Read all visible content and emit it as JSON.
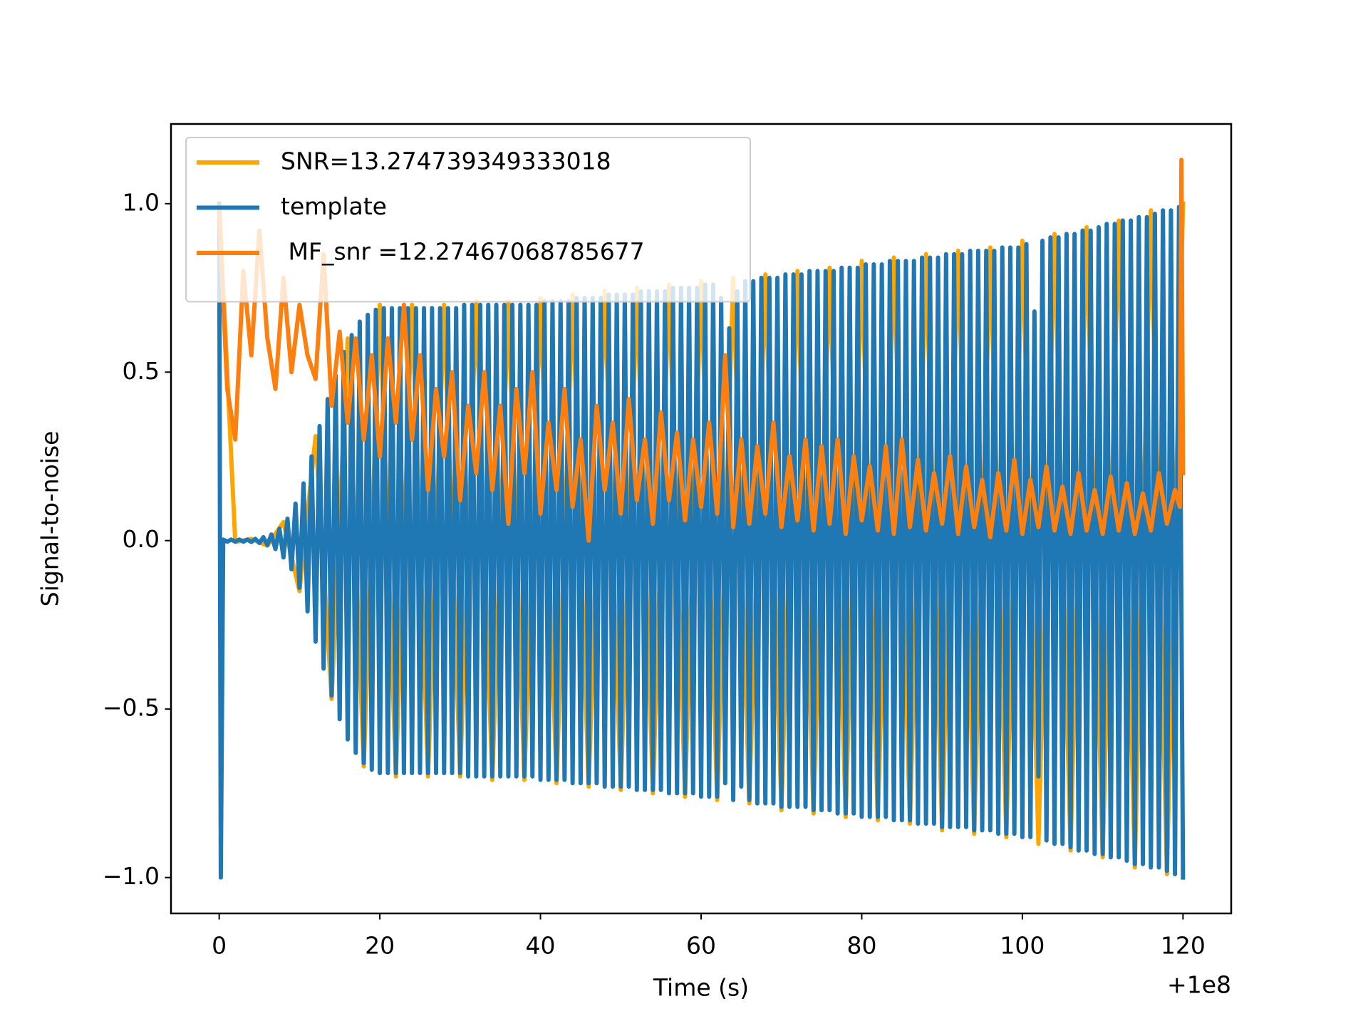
{
  "chart_data": {
    "type": "line",
    "x_label": "Time (s)",
    "y_label": "Signal-to-noise",
    "x_offset_label": "+1e8",
    "xlim": [
      -6,
      126
    ],
    "xticks": [
      0,
      20,
      40,
      60,
      80,
      100,
      120
    ],
    "ylim": [
      -1.1065,
      1.2365
    ],
    "yticks": [
      {
        "value": -1.0,
        "label": "−1.0"
      },
      {
        "value": -0.5,
        "label": "−0.5"
      },
      {
        "value": 0,
        "label": "0.0"
      },
      0.5,
      {
        "value": 1.0,
        "label": "1.0"
      }
    ],
    "legend": "upper left",
    "series": [
      {
        "name": "SNR=13.274739349333018",
        "color": "#ffa500",
        "x": [
          0,
          2,
          4,
          6,
          8,
          10,
          12,
          14,
          16,
          18,
          20,
          22,
          24,
          26,
          28,
          30,
          32,
          34,
          36,
          38,
          40,
          42,
          44,
          46,
          48,
          50,
          52,
          54,
          56,
          58,
          60,
          62,
          64,
          66,
          68,
          70,
          72,
          74,
          76,
          78,
          80,
          82,
          84,
          86,
          88,
          90,
          92,
          94,
          96,
          98,
          100,
          102,
          104,
          106,
          108,
          110,
          112,
          114,
          116,
          118,
          120
        ],
        "values": [
          1.0,
          -0.004,
          0.005,
          -0.015,
          0.055,
          -0.15,
          0.31,
          -0.47,
          0.6,
          -0.67,
          0.7,
          -0.7,
          0.7,
          -0.7,
          0.7,
          -0.7,
          0.71,
          -0.71,
          0.71,
          -0.71,
          0.72,
          -0.72,
          0.73,
          -0.73,
          0.74,
          -0.74,
          0.75,
          -0.75,
          0.76,
          -0.76,
          0.77,
          -0.77,
          0.78,
          -0.78,
          0.79,
          -0.8,
          0.8,
          -0.81,
          0.81,
          -0.82,
          0.83,
          -0.83,
          0.84,
          -0.84,
          0.85,
          -0.86,
          0.86,
          -0.87,
          0.87,
          -0.88,
          0.89,
          -0.9,
          0.91,
          -0.92,
          0.93,
          -0.94,
          0.95,
          -0.97,
          0.98,
          -0.99,
          1.0
        ]
      },
      {
        "name": "template",
        "color": "#1f77b4",
        "x": [
          0,
          0.2,
          0.5,
          1,
          1.5,
          2,
          2.5,
          3,
          3.5,
          4,
          4.5,
          5,
          5.5,
          6,
          6.5,
          7,
          7.5,
          8,
          8.5,
          9,
          9.5,
          10,
          10.5,
          11,
          11.5,
          12,
          12.5,
          13,
          13.5,
          14,
          14.5,
          15,
          15.5,
          16,
          16.5,
          17,
          17.5,
          18,
          18.5,
          19,
          19.5,
          20,
          20.5,
          21,
          21.5,
          22,
          22.5,
          23,
          23.5,
          24,
          24.5,
          25,
          25.5,
          26,
          26.5,
          27,
          27.5,
          28,
          28.5,
          29,
          29.5,
          30,
          30.5,
          31,
          31.5,
          32,
          32.5,
          33,
          33.5,
          34,
          34.5,
          35,
          35.5,
          36,
          36.5,
          37,
          37.5,
          38,
          38.5,
          39,
          39.5,
          40,
          40.5,
          41,
          41.5,
          42,
          42.5,
          43,
          43.5,
          44,
          44.5,
          45,
          45.5,
          46,
          46.5,
          47,
          47.5,
          48,
          48.5,
          49,
          49.5,
          50,
          50.5,
          51,
          51.5,
          52,
          52.5,
          53,
          53.5,
          54,
          54.5,
          55,
          55.5,
          56,
          56.5,
          57,
          57.5,
          58,
          58.5,
          59,
          59.5,
          60,
          60.5,
          61,
          61.5,
          62,
          62.5,
          63,
          63.5,
          64,
          64.5,
          65,
          65.5,
          66,
          66.5,
          67,
          67.5,
          68,
          68.5,
          69,
          69.5,
          70,
          70.5,
          71,
          71.5,
          72,
          72.5,
          73,
          73.5,
          74,
          74.5,
          75,
          75.5,
          76,
          76.5,
          77,
          77.5,
          78,
          78.5,
          79,
          79.5,
          80,
          80.5,
          81,
          81.5,
          82,
          82.5,
          83,
          83.5,
          84,
          84.5,
          85,
          85.5,
          86,
          86.5,
          87,
          87.5,
          88,
          88.5,
          89,
          89.5,
          90,
          90.5,
          91,
          91.5,
          92,
          92.5,
          93,
          93.5,
          94,
          94.5,
          95,
          95.5,
          96,
          96.5,
          97,
          97.5,
          98,
          98.5,
          99,
          99.5,
          100,
          100.5,
          101,
          101.5,
          102,
          102.5,
          103,
          103.5,
          104,
          104.5,
          105,
          105.5,
          106,
          106.5,
          107,
          107.5,
          108,
          108.5,
          109,
          109.5,
          110,
          110.5,
          111,
          111.5,
          112,
          112.5,
          113,
          113.5,
          114,
          114.5,
          115,
          115.5,
          116,
          116.5,
          117,
          117.5,
          118,
          118.5,
          119,
          119.5,
          120
        ],
        "values": [
          1.0,
          -1.0,
          0.003,
          -0.003,
          0.003,
          -0.003,
          0.003,
          -0.003,
          0.003,
          -0.004,
          0.005,
          -0.007,
          0.01,
          -0.013,
          0.018,
          -0.025,
          0.035,
          -0.05,
          0.065,
          -0.085,
          0.11,
          -0.14,
          0.17,
          -0.21,
          0.25,
          -0.3,
          0.34,
          -0.38,
          0.42,
          -0.46,
          0.49,
          -0.53,
          0.56,
          -0.59,
          0.61,
          -0.63,
          0.65,
          -0.66,
          0.67,
          -0.68,
          0.685,
          -0.69,
          0.69,
          -0.69,
          0.69,
          -0.69,
          0.69,
          -0.69,
          0.69,
          -0.69,
          0.69,
          -0.69,
          0.69,
          -0.69,
          0.69,
          -0.69,
          0.69,
          -0.69,
          0.69,
          -0.69,
          0.69,
          -0.69,
          0.7,
          -0.7,
          0.7,
          -0.7,
          0.7,
          -0.7,
          0.7,
          -0.7,
          0.7,
          -0.7,
          0.7,
          -0.7,
          0.7,
          -0.7,
          0.7,
          -0.7,
          0.7,
          -0.7,
          0.7,
          -0.71,
          0.71,
          -0.71,
          0.71,
          -0.71,
          0.71,
          -0.71,
          0.71,
          -0.72,
          0.72,
          -0.72,
          0.72,
          -0.72,
          0.72,
          -0.72,
          0.72,
          -0.73,
          0.73,
          -0.73,
          0.73,
          -0.73,
          0.73,
          -0.73,
          0.73,
          -0.74,
          0.74,
          -0.74,
          0.74,
          -0.74,
          0.74,
          -0.74,
          0.74,
          -0.75,
          0.75,
          -0.75,
          0.75,
          -0.75,
          0.75,
          -0.75,
          0.75,
          -0.76,
          0.76,
          -0.76,
          0.76,
          -0.76,
          0.72,
          -0.72,
          0.63,
          -0.77,
          0.74,
          -0.73,
          0.77,
          -0.77,
          0.77,
          -0.78,
          0.78,
          -0.78,
          0.78,
          -0.78,
          0.78,
          -0.79,
          0.79,
          -0.79,
          0.79,
          -0.79,
          0.79,
          -0.79,
          0.8,
          -0.8,
          0.8,
          -0.8,
          0.8,
          -0.8,
          0.8,
          -0.81,
          0.81,
          -0.81,
          0.81,
          -0.81,
          0.81,
          -0.82,
          0.82,
          -0.82,
          0.82,
          -0.82,
          0.82,
          -0.82,
          0.83,
          -0.83,
          0.83,
          -0.83,
          0.83,
          -0.83,
          0.83,
          -0.84,
          0.84,
          -0.84,
          0.84,
          -0.84,
          0.84,
          -0.85,
          0.85,
          -0.85,
          0.85,
          -0.85,
          0.85,
          -0.85,
          0.86,
          -0.86,
          0.86,
          -0.86,
          0.86,
          -0.86,
          0.86,
          -0.87,
          0.87,
          -0.87,
          0.87,
          -0.87,
          0.87,
          -0.88,
          0.88,
          -0.88,
          0.68,
          -0.7,
          0.89,
          -0.89,
          0.9,
          -0.9,
          0.9,
          -0.9,
          0.91,
          -0.91,
          0.91,
          -0.92,
          0.92,
          -0.92,
          0.92,
          -0.93,
          0.93,
          -0.93,
          0.94,
          -0.94,
          0.94,
          -0.94,
          0.95,
          -0.95,
          0.95,
          -0.96,
          0.96,
          -0.96,
          0.96,
          -0.97,
          0.97,
          -0.97,
          0.98,
          -0.98,
          0.98,
          -0.99,
          0.99,
          -1.0
        ]
      },
      {
        "name": " MF_snr =12.27467068785677",
        "color": "#ff7f0e",
        "x": [
          0,
          1,
          2,
          3,
          4,
          5,
          6,
          7,
          8,
          9,
          10,
          11,
          12,
          13,
          14,
          15,
          16,
          17,
          18,
          19,
          20,
          21,
          22,
          23,
          24,
          25,
          26,
          27,
          28,
          29,
          30,
          31,
          32,
          33,
          34,
          35,
          36,
          37,
          38,
          39,
          40,
          41,
          42,
          43,
          44,
          45,
          46,
          47,
          48,
          49,
          50,
          51,
          52,
          53,
          54,
          55,
          56,
          57,
          58,
          59,
          60,
          61,
          62,
          63,
          64,
          65,
          66,
          67,
          68,
          69,
          70,
          71,
          72,
          73,
          74,
          75,
          76,
          77,
          78,
          79,
          80,
          81,
          82,
          83,
          84,
          85,
          86,
          87,
          88,
          89,
          90,
          91,
          92,
          93,
          94,
          95,
          96,
          97,
          98,
          99,
          100,
          101,
          102,
          103,
          104,
          105,
          106,
          107,
          108,
          109,
          110,
          111,
          112,
          113,
          114,
          115,
          116,
          117,
          118,
          119,
          119.6,
          119.8,
          120
        ],
        "values": [
          0.98,
          0.45,
          0.3,
          0.8,
          0.55,
          0.92,
          0.6,
          0.45,
          0.78,
          0.5,
          0.7,
          0.55,
          0.48,
          0.85,
          0.4,
          0.62,
          0.35,
          0.6,
          0.3,
          0.55,
          0.25,
          0.6,
          0.35,
          0.7,
          0.3,
          0.55,
          0.15,
          0.45,
          0.25,
          0.5,
          0.12,
          0.4,
          0.2,
          0.5,
          0.15,
          0.4,
          0.05,
          0.45,
          0.2,
          0.5,
          0.08,
          0.35,
          0.15,
          0.45,
          0.1,
          0.3,
          0.0,
          0.4,
          0.15,
          0.35,
          0.08,
          0.42,
          0.12,
          0.3,
          0.05,
          0.38,
          0.12,
          0.32,
          0.06,
          0.3,
          0.1,
          0.35,
          0.08,
          0.55,
          0.04,
          0.3,
          0.05,
          0.28,
          0.08,
          0.35,
          0.04,
          0.25,
          0.06,
          0.3,
          0.03,
          0.28,
          0.05,
          0.3,
          0.02,
          0.25,
          0.06,
          0.22,
          0.03,
          0.28,
          0.02,
          0.3,
          0.04,
          0.24,
          0.03,
          0.2,
          0.05,
          0.25,
          0.02,
          0.22,
          0.04,
          0.18,
          0.01,
          0.2,
          0.03,
          0.24,
          0.02,
          0.18,
          0.04,
          0.22,
          0.03,
          0.16,
          0.02,
          0.2,
          0.03,
          0.15,
          0.02,
          0.19,
          0.03,
          0.17,
          0.02,
          0.14,
          0.03,
          0.2,
          0.05,
          0.15,
          0.1,
          1.13,
          0.2
        ]
      }
    ]
  }
}
